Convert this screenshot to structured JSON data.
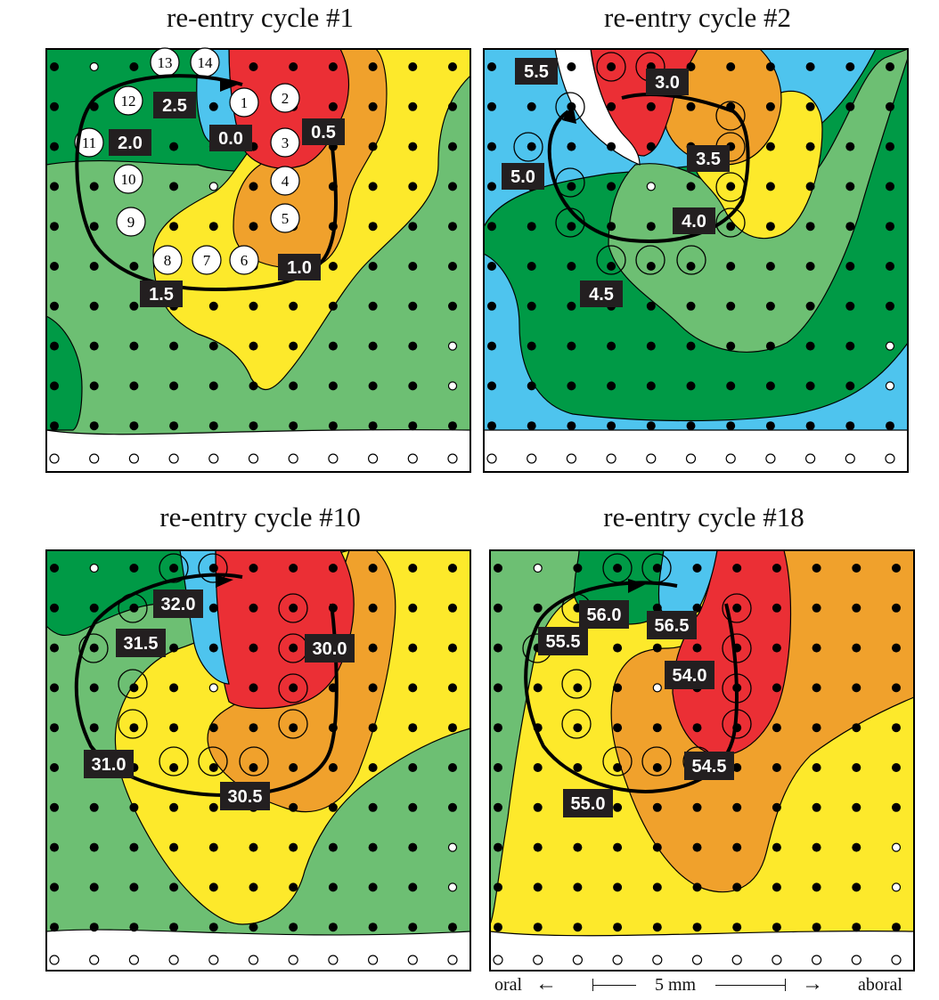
{
  "colors": {
    "dark_green": "#009a46",
    "light_green": "#6dbf73",
    "blue": "#4ec4ee",
    "red": "#eb2f35",
    "orange": "#f0a12c",
    "yellow": "#fde92b",
    "white": "#ffffff",
    "label_bg": "#231f20"
  },
  "panels": [
    {
      "title": "re-entry cycle #1",
      "time_labels": [
        "0.0",
        "0.5",
        "1.0",
        "1.5",
        "2.0",
        "2.5"
      ],
      "sequence_numbers": [
        "1",
        "2",
        "3",
        "4",
        "5",
        "6",
        "7",
        "8",
        "9",
        "10",
        "11",
        "12",
        "13",
        "14"
      ]
    },
    {
      "title": "re-entry cycle #2",
      "time_labels": [
        "3.0",
        "3.5",
        "4.0",
        "4.5",
        "5.0",
        "5.5"
      ]
    },
    {
      "title": "re-entry cycle #10",
      "time_labels": [
        "30.0",
        "30.5",
        "31.0",
        "31.5",
        "32.0"
      ]
    },
    {
      "title": "re-entry cycle #18",
      "time_labels": [
        "54.0",
        "54.5",
        "55.0",
        "55.5",
        "56.0",
        "56.5"
      ]
    }
  ],
  "scale": {
    "left_label": "oral",
    "center_label": "5 mm",
    "right_label": "aboral"
  }
}
